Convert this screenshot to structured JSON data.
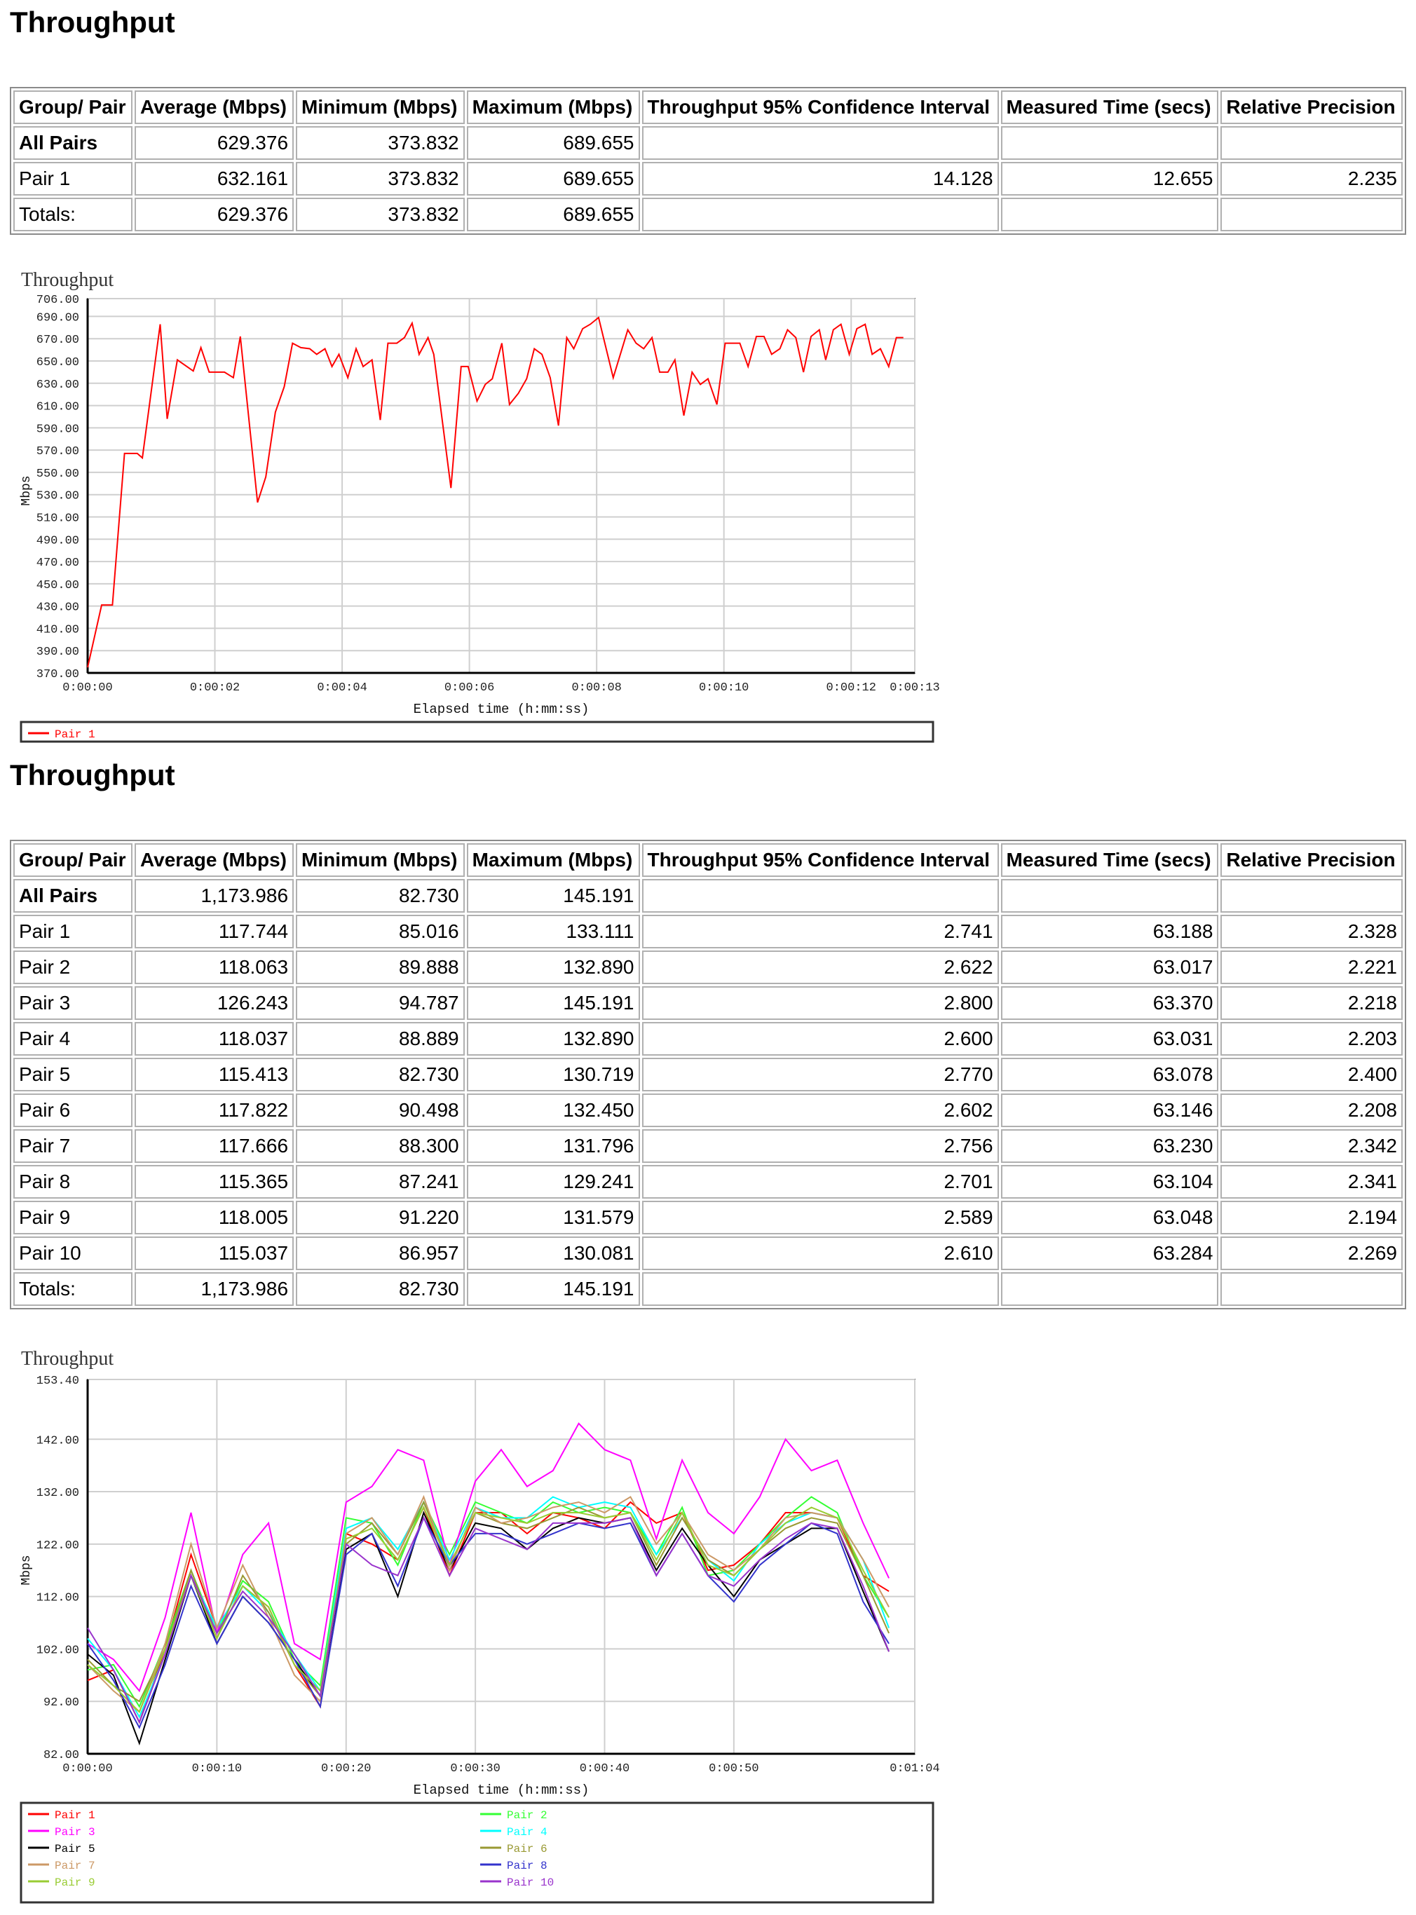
{
  "sections": [
    {
      "heading": "Throughput",
      "table": {
        "headers": [
          "Group/ Pair",
          "Average (Mbps)",
          "Minimum (Mbps)",
          "Maximum (Mbps)",
          "Throughput 95% Confidence Interval",
          "Measured Time (secs)",
          "Relative Precision"
        ],
        "rows": [
          [
            "All Pairs",
            "629.376",
            "373.832",
            "689.655",
            "",
            "",
            ""
          ],
          [
            "Pair 1",
            "632.161",
            "373.832",
            "689.655",
            "14.128",
            "12.655",
            "2.235"
          ],
          [
            "Totals:",
            "629.376",
            "373.832",
            "689.655",
            "",
            "",
            ""
          ]
        ]
      }
    },
    {
      "heading": "Throughput",
      "table": {
        "headers": [
          "Group/ Pair",
          "Average (Mbps)",
          "Minimum (Mbps)",
          "Maximum (Mbps)",
          "Throughput 95% Confidence Interval",
          "Measured Time (secs)",
          "Relative Precision"
        ],
        "rows": [
          [
            "All Pairs",
            "1,173.986",
            "82.730",
            "145.191",
            "",
            "",
            ""
          ],
          [
            "Pair 1",
            "117.744",
            "85.016",
            "133.111",
            "2.741",
            "63.188",
            "2.328"
          ],
          [
            "Pair 2",
            "118.063",
            "89.888",
            "132.890",
            "2.622",
            "63.017",
            "2.221"
          ],
          [
            "Pair 3",
            "126.243",
            "94.787",
            "145.191",
            "2.800",
            "63.370",
            "2.218"
          ],
          [
            "Pair 4",
            "118.037",
            "88.889",
            "132.890",
            "2.600",
            "63.031",
            "2.203"
          ],
          [
            "Pair 5",
            "115.413",
            "82.730",
            "130.719",
            "2.770",
            "63.078",
            "2.400"
          ],
          [
            "Pair 6",
            "117.822",
            "90.498",
            "132.450",
            "2.602",
            "63.146",
            "2.208"
          ],
          [
            "Pair 7",
            "117.666",
            "88.300",
            "131.796",
            "2.756",
            "63.230",
            "2.342"
          ],
          [
            "Pair 8",
            "115.365",
            "87.241",
            "129.241",
            "2.701",
            "63.104",
            "2.341"
          ],
          [
            "Pair 9",
            "118.005",
            "91.220",
            "131.579",
            "2.589",
            "63.048",
            "2.194"
          ],
          [
            "Pair 10",
            "115.037",
            "86.957",
            "130.081",
            "2.610",
            "63.284",
            "2.269"
          ],
          [
            "Totals:",
            "1,173.986",
            "82.730",
            "145.191",
            "",
            "",
            ""
          ]
        ]
      }
    }
  ],
  "chart_data": [
    {
      "type": "line",
      "title": "Throughput",
      "xlabel": "Elapsed time (h:mm:ss)",
      "ylabel": "Mbps",
      "xlim": [
        0,
        13
      ],
      "ylim": [
        370,
        706
      ],
      "xticks": [
        [
          0,
          "0:00:00"
        ],
        [
          2,
          "0:00:02"
        ],
        [
          4,
          "0:00:04"
        ],
        [
          6,
          "0:00:06"
        ],
        [
          8,
          "0:00:08"
        ],
        [
          10,
          "0:00:10"
        ],
        [
          12,
          "0:00:12"
        ],
        [
          13,
          "0:00:13"
        ]
      ],
      "yticks": [
        [
          370,
          "370.00"
        ],
        [
          390,
          "390.00"
        ],
        [
          410,
          "410.00"
        ],
        [
          430,
          "430.00"
        ],
        [
          450,
          "450.00"
        ],
        [
          470,
          "470.00"
        ],
        [
          490,
          "490.00"
        ],
        [
          510,
          "510.00"
        ],
        [
          530,
          "530.00"
        ],
        [
          550,
          "550.00"
        ],
        [
          570,
          "570.00"
        ],
        [
          590,
          "590.00"
        ],
        [
          610,
          "610.00"
        ],
        [
          630,
          "630.00"
        ],
        [
          650,
          "650.00"
        ],
        [
          670,
          "670.00"
        ],
        [
          690,
          "690.00"
        ],
        [
          706,
          "706.00"
        ]
      ],
      "grid": true,
      "legend_placement": "bottom",
      "series": [
        {
          "name": "Pair 1",
          "color": "#ff0000",
          "x": [
            0,
            0.22,
            0.39,
            0.58,
            0.78,
            0.86,
            1.14,
            1.25,
            1.41,
            1.66,
            1.78,
            1.91,
            2.15,
            2.29,
            2.4,
            2.67,
            2.8,
            2.95,
            3.09,
            3.22,
            3.35,
            3.49,
            3.6,
            3.73,
            3.84,
            3.95,
            4.09,
            4.22,
            4.33,
            4.47,
            4.6,
            4.72,
            4.86,
            4.98,
            5.1,
            5.21,
            5.35,
            5.44,
            5.71,
            5.87,
            5.98,
            6.12,
            6.25,
            6.36,
            6.51,
            6.63,
            6.77,
            6.9,
            7.02,
            7.14,
            7.27,
            7.4,
            7.53,
            7.64,
            7.78,
            7.9,
            8.03,
            8.26,
            8.49,
            8.62,
            8.74,
            8.87,
            8.99,
            9.12,
            9.23,
            9.37,
            9.5,
            9.63,
            9.75,
            9.89,
            10.02,
            10.25,
            10.38,
            10.51,
            10.63,
            10.75,
            10.88,
            11.0,
            11.13,
            11.25,
            11.37,
            11.5,
            11.6,
            11.72,
            11.84,
            11.97,
            12.09,
            12.22,
            12.33,
            12.46,
            12.59,
            12.71,
            12.82
          ],
          "y": [
            375,
            431,
            431,
            567,
            567,
            563,
            683,
            598,
            651,
            641,
            662,
            640,
            640,
            635,
            672,
            523,
            546,
            604,
            627,
            666,
            662,
            661,
            656,
            661,
            645,
            656,
            635,
            661,
            645,
            651,
            597,
            666,
            666,
            671,
            684,
            656,
            671,
            656,
            536,
            645,
            645,
            614,
            629,
            634,
            666,
            611,
            621,
            634,
            661,
            656,
            635,
            592,
            671,
            661,
            679,
            683,
            689,
            635,
            678,
            666,
            661,
            671,
            640,
            640,
            651,
            601,
            640,
            629,
            634,
            611,
            666,
            666,
            645,
            672,
            672,
            656,
            661,
            678,
            671,
            640,
            672,
            678,
            651,
            678,
            683,
            656,
            679,
            683,
            656,
            661,
            645,
            671,
            671
          ]
        }
      ]
    },
    {
      "type": "line",
      "title": "Throughput",
      "xlabel": "Elapsed time (h:mm:ss)",
      "ylabel": "Mbps",
      "xlim": [
        0,
        64
      ],
      "ylim": [
        82,
        153.4
      ],
      "xticks": [
        [
          0,
          "0:00:00"
        ],
        [
          10,
          "0:00:10"
        ],
        [
          20,
          "0:00:20"
        ],
        [
          30,
          "0:00:30"
        ],
        [
          40,
          "0:00:40"
        ],
        [
          50,
          "0:00:50"
        ],
        [
          64,
          "0:01:04"
        ]
      ],
      "yticks": [
        [
          82,
          "82.00"
        ],
        [
          92,
          "92.00"
        ],
        [
          102,
          "102.00"
        ],
        [
          112,
          "112.00"
        ],
        [
          122,
          "122.00"
        ],
        [
          132,
          "132.00"
        ],
        [
          142,
          "142.00"
        ],
        [
          153.4,
          "153.40"
        ]
      ],
      "grid": true,
      "legend_placement": "bottom",
      "x": [
        0,
        2,
        4,
        6,
        8,
        10,
        12,
        14,
        16,
        18,
        20,
        22,
        24,
        26,
        28,
        30,
        32,
        34,
        36,
        38,
        40,
        42,
        44,
        46,
        48,
        50,
        52,
        54,
        56,
        58,
        60,
        62
      ],
      "series": [
        {
          "name": "Pair 1",
          "color": "#ff0000",
          "values": [
            96,
            98,
            88,
            102,
            120,
            106,
            114,
            110,
            99,
            91,
            124,
            122,
            119,
            129,
            116,
            128,
            128,
            124,
            128,
            127,
            125,
            130,
            126,
            128,
            117,
            118,
            122,
            128,
            128,
            127,
            116,
            113
          ]
        },
        {
          "name": "Pair 2",
          "color": "#33ff33",
          "values": [
            98,
            99,
            91,
            103,
            117,
            105,
            115,
            111,
            100,
            95,
            127,
            126,
            118,
            130,
            120,
            130,
            128,
            126,
            130,
            128,
            129,
            128,
            120,
            129,
            116,
            117,
            122,
            127,
            131,
            128,
            116,
            108
          ]
        },
        {
          "name": "Pair 3",
          "color": "#ff00ff",
          "values": [
            103,
            100,
            94,
            108,
            128,
            105,
            120,
            126,
            103,
            100,
            130,
            133,
            140,
            138,
            118,
            134,
            140,
            133,
            136,
            145,
            140,
            138,
            123,
            138,
            128,
            124,
            131,
            142,
            136,
            138,
            126,
            115.5
          ]
        },
        {
          "name": "Pair 4",
          "color": "#00ffff",
          "values": [
            104,
            98,
            89,
            101,
            116,
            106,
            114,
            109,
            101,
            94,
            125,
            127,
            121,
            130,
            119,
            129,
            127,
            127,
            131,
            129,
            130,
            129,
            120,
            127,
            119,
            115,
            122,
            126,
            128,
            127,
            119,
            106
          ]
        },
        {
          "name": "Pair 5",
          "color": "#000000",
          "values": [
            101,
            97,
            84,
            100,
            116,
            103,
            112,
            107,
            100,
            93,
            121,
            124,
            112,
            128,
            117,
            126,
            125,
            121,
            125,
            127,
            126,
            127,
            117,
            125,
            118,
            112,
            119,
            122,
            125,
            125,
            113,
            101.5
          ]
        },
        {
          "name": "Pair 6",
          "color": "#999933",
          "values": [
            100,
            95,
            92,
            102,
            117,
            104,
            116,
            109,
            99,
            93,
            122,
            126,
            120,
            130,
            118,
            128,
            126,
            125,
            127,
            129,
            127,
            128,
            118,
            127,
            119,
            116,
            121,
            125,
            127,
            126,
            116,
            105
          ]
        },
        {
          "name": "Pair 7",
          "color": "#cc9966",
          "values": [
            99,
            94,
            90,
            103,
            122,
            106,
            118,
            108,
            97,
            92,
            124,
            127,
            120,
            131,
            117,
            129,
            126,
            127,
            129,
            130,
            128,
            131,
            122,
            128,
            120,
            117,
            121,
            127,
            128,
            127,
            119,
            110
          ]
        },
        {
          "name": "Pair 8",
          "color": "#3333cc",
          "values": [
            103,
            96,
            87,
            99,
            114,
            103,
            112,
            107,
            100,
            91,
            120,
            124,
            114,
            127,
            118,
            124,
            124,
            122,
            124,
            126,
            125,
            126,
            116,
            124,
            116,
            111,
            118,
            122,
            126,
            124,
            111,
            103
          ]
        },
        {
          "name": "Pair 9",
          "color": "#99cc33",
          "values": [
            99,
            95,
            90,
            102,
            116,
            104,
            114,
            110,
            99,
            94,
            123,
            125,
            119,
            129,
            118,
            128,
            127,
            126,
            128,
            128,
            127,
            128,
            119,
            128,
            118,
            116,
            121,
            126,
            129,
            127,
            117,
            108
          ]
        },
        {
          "name": "Pair 10",
          "color": "#9933cc",
          "values": [
            106,
            98,
            88,
            101,
            116,
            105,
            113,
            108,
            101,
            93,
            122,
            118,
            116,
            127,
            116,
            125,
            123,
            121,
            126,
            126,
            126,
            127,
            116,
            124,
            116,
            114,
            119,
            123,
            126,
            125,
            114,
            101.5
          ]
        }
      ]
    }
  ]
}
